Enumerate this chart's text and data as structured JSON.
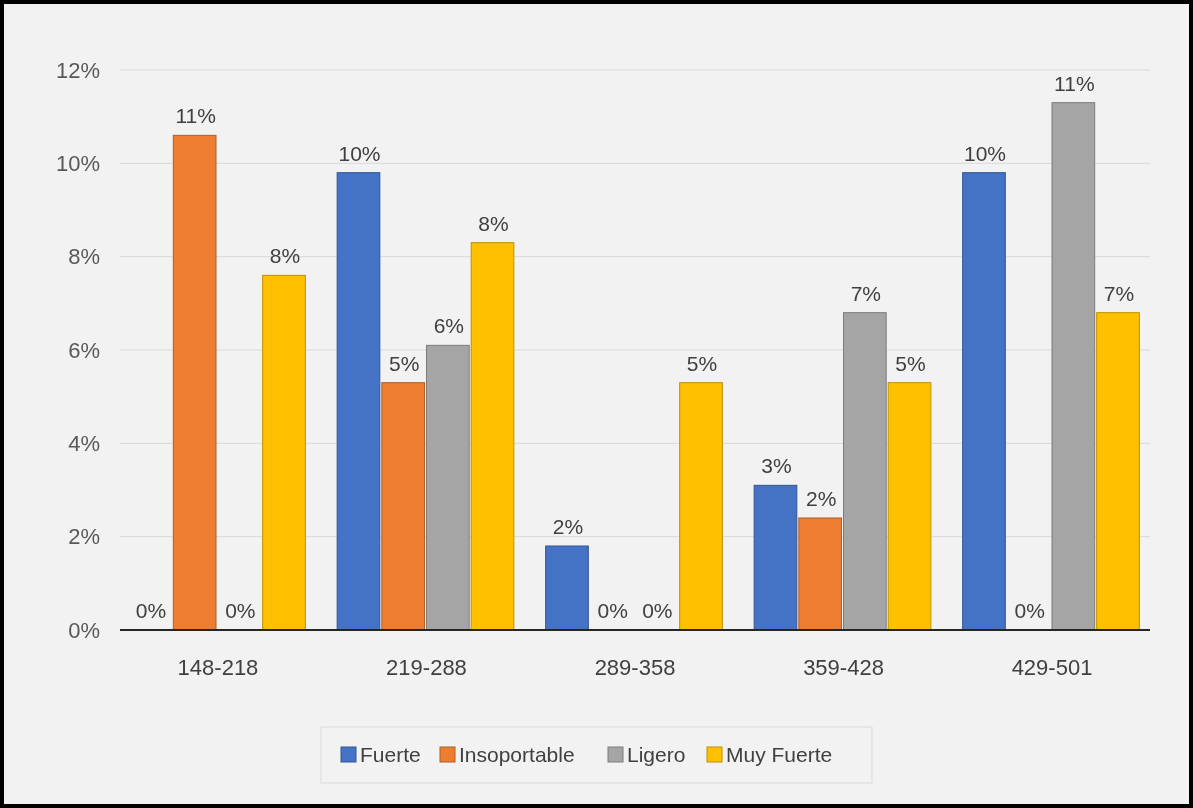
{
  "chart_data": {
    "type": "bar",
    "categories": [
      "148-218",
      "219-288",
      "289-358",
      "359-428",
      "429-501"
    ],
    "series": [
      {
        "name": "Fuerte",
        "color": "#4472c4",
        "values": [
          0,
          9.8,
          1.8,
          3.1,
          9.8
        ],
        "value_labels": [
          "0%",
          "10%",
          "2%",
          "3%",
          "10%"
        ]
      },
      {
        "name": "Insoportable",
        "color": "#ed7d31",
        "values": [
          10.6,
          5.3,
          0,
          2.4,
          0
        ],
        "value_labels": [
          "11%",
          "5%",
          "0%",
          "2%",
          "0%"
        ]
      },
      {
        "name": "Ligero",
        "color": "#a5a5a5",
        "values": [
          0,
          6.1,
          0,
          6.8,
          11.3
        ],
        "value_labels": [
          "0%",
          "6%",
          "0%",
          "7%",
          "11%"
        ]
      },
      {
        "name": "Muy Fuerte",
        "color": "#ffc000",
        "values": [
          7.6,
          8.3,
          5.3,
          5.3,
          6.8
        ],
        "value_labels": [
          "8%",
          "8%",
          "5%",
          "5%",
          "7%"
        ]
      }
    ],
    "ylim": [
      0,
      12
    ],
    "yticks": [
      {
        "value": 0,
        "label": "0%"
      },
      {
        "value": 2,
        "label": "2%"
      },
      {
        "value": 4,
        "label": "4%"
      },
      {
        "value": 6,
        "label": "6%"
      },
      {
        "value": 8,
        "label": "8%"
      },
      {
        "value": 10,
        "label": "10%"
      },
      {
        "value": 12,
        "label": "12%"
      }
    ],
    "grid": "y",
    "legend": "bottom"
  }
}
